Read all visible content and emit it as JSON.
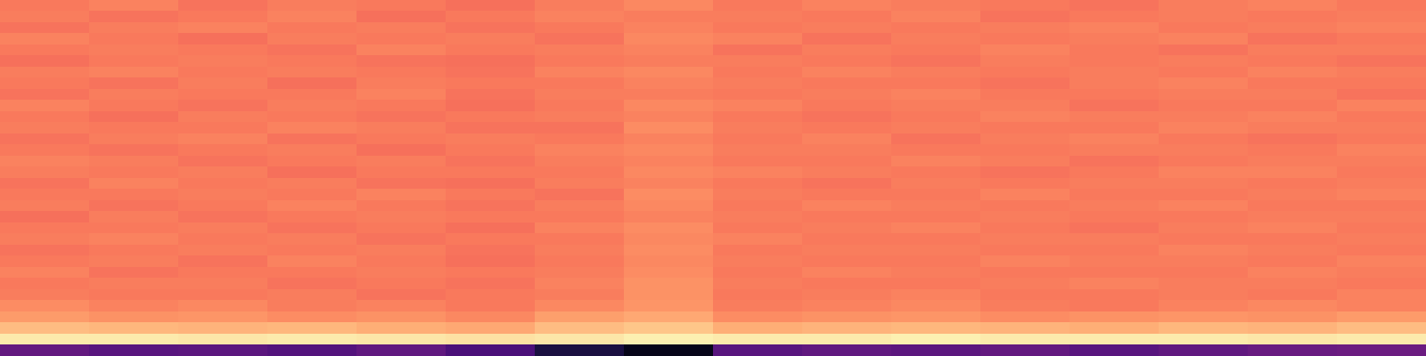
{
  "chart_data": {
    "type": "heatmap",
    "color": "magma",
    "tick_labels": false,
    "color_range": [
      0,
      1
    ],
    "cells": [
      [
        0.72,
        0.74,
        0.71,
        0.73,
        0.72,
        0.7,
        0.73,
        0.75,
        0.72,
        0.74,
        0.73,
        0.72,
        0.71,
        0.73,
        0.74,
        0.72
      ],
      [
        0.73,
        0.71,
        0.72,
        0.74,
        0.7,
        0.72,
        0.74,
        0.73,
        0.73,
        0.72,
        0.74,
        0.71,
        0.72,
        0.73,
        0.72,
        0.73
      ],
      [
        0.71,
        0.73,
        0.74,
        0.72,
        0.73,
        0.71,
        0.72,
        0.74,
        0.72,
        0.73,
        0.72,
        0.73,
        0.74,
        0.72,
        0.73,
        0.74
      ],
      [
        0.74,
        0.72,
        0.7,
        0.73,
        0.72,
        0.73,
        0.71,
        0.75,
        0.74,
        0.71,
        0.73,
        0.72,
        0.73,
        0.74,
        0.71,
        0.72
      ],
      [
        0.72,
        0.73,
        0.72,
        0.71,
        0.74,
        0.72,
        0.73,
        0.74,
        0.71,
        0.73,
        0.72,
        0.74,
        0.72,
        0.71,
        0.73,
        0.73
      ],
      [
        0.7,
        0.72,
        0.73,
        0.72,
        0.71,
        0.7,
        0.72,
        0.73,
        0.73,
        0.72,
        0.71,
        0.73,
        0.72,
        0.73,
        0.72,
        0.71
      ],
      [
        0.73,
        0.74,
        0.72,
        0.73,
        0.72,
        0.71,
        0.74,
        0.75,
        0.72,
        0.74,
        0.73,
        0.72,
        0.73,
        0.72,
        0.74,
        0.73
      ],
      [
        0.72,
        0.71,
        0.73,
        0.7,
        0.73,
        0.72,
        0.72,
        0.74,
        0.73,
        0.72,
        0.72,
        0.71,
        0.73,
        0.74,
        0.72,
        0.72
      ],
      [
        0.71,
        0.73,
        0.72,
        0.72,
        0.74,
        0.71,
        0.73,
        0.73,
        0.72,
        0.73,
        0.74,
        0.72,
        0.72,
        0.73,
        0.73,
        0.71
      ],
      [
        0.74,
        0.72,
        0.71,
        0.73,
        0.72,
        0.7,
        0.72,
        0.75,
        0.74,
        0.72,
        0.73,
        0.73,
        0.71,
        0.72,
        0.72,
        0.74
      ],
      [
        0.72,
        0.7,
        0.73,
        0.72,
        0.71,
        0.72,
        0.73,
        0.74,
        0.72,
        0.71,
        0.72,
        0.74,
        0.73,
        0.73,
        0.74,
        0.72
      ],
      [
        0.73,
        0.72,
        0.72,
        0.74,
        0.73,
        0.71,
        0.71,
        0.76,
        0.73,
        0.72,
        0.73,
        0.72,
        0.72,
        0.74,
        0.73,
        0.73
      ],
      [
        0.71,
        0.73,
        0.74,
        0.71,
        0.72,
        0.73,
        0.72,
        0.74,
        0.72,
        0.74,
        0.71,
        0.73,
        0.74,
        0.72,
        0.71,
        0.72
      ],
      [
        0.72,
        0.71,
        0.72,
        0.73,
        0.7,
        0.72,
        0.74,
        0.75,
        0.73,
        0.73,
        0.72,
        0.72,
        0.73,
        0.73,
        0.72,
        0.74
      ],
      [
        0.74,
        0.73,
        0.71,
        0.72,
        0.73,
        0.71,
        0.73,
        0.74,
        0.72,
        0.72,
        0.74,
        0.73,
        0.71,
        0.72,
        0.73,
        0.73
      ],
      [
        0.73,
        0.72,
        0.73,
        0.7,
        0.72,
        0.72,
        0.72,
        0.75,
        0.74,
        0.73,
        0.72,
        0.71,
        0.72,
        0.74,
        0.74,
        0.72
      ],
      [
        0.71,
        0.74,
        0.72,
        0.73,
        0.71,
        0.7,
        0.73,
        0.74,
        0.72,
        0.71,
        0.73,
        0.72,
        0.73,
        0.73,
        0.72,
        0.73
      ],
      [
        0.72,
        0.72,
        0.73,
        0.72,
        0.74,
        0.72,
        0.71,
        0.76,
        0.73,
        0.72,
        0.72,
        0.74,
        0.72,
        0.72,
        0.73,
        0.74
      ],
      [
        0.73,
        0.71,
        0.72,
        0.74,
        0.72,
        0.71,
        0.73,
        0.75,
        0.72,
        0.74,
        0.73,
        0.72,
        0.73,
        0.74,
        0.72,
        0.72
      ],
      [
        0.7,
        0.73,
        0.71,
        0.72,
        0.73,
        0.72,
        0.72,
        0.74,
        0.73,
        0.72,
        0.72,
        0.73,
        0.72,
        0.72,
        0.73,
        0.73
      ],
      [
        0.72,
        0.72,
        0.73,
        0.71,
        0.72,
        0.7,
        0.74,
        0.76,
        0.72,
        0.73,
        0.74,
        0.72,
        0.71,
        0.73,
        0.74,
        0.72
      ],
      [
        0.73,
        0.74,
        0.72,
        0.73,
        0.71,
        0.72,
        0.72,
        0.75,
        0.74,
        0.72,
        0.72,
        0.73,
        0.73,
        0.72,
        0.72,
        0.73
      ],
      [
        0.71,
        0.72,
        0.73,
        0.72,
        0.73,
        0.71,
        0.73,
        0.76,
        0.72,
        0.73,
        0.73,
        0.72,
        0.72,
        0.74,
        0.73,
        0.72
      ],
      [
        0.72,
        0.73,
        0.71,
        0.74,
        0.72,
        0.7,
        0.72,
        0.75,
        0.73,
        0.72,
        0.72,
        0.74,
        0.73,
        0.73,
        0.72,
        0.74
      ],
      [
        0.74,
        0.71,
        0.72,
        0.72,
        0.73,
        0.72,
        0.73,
        0.76,
        0.72,
        0.74,
        0.73,
        0.72,
        0.72,
        0.72,
        0.74,
        0.73
      ],
      [
        0.72,
        0.73,
        0.73,
        0.71,
        0.72,
        0.71,
        0.74,
        0.77,
        0.73,
        0.72,
        0.72,
        0.73,
        0.74,
        0.73,
        0.73,
        0.72
      ],
      [
        0.73,
        0.72,
        0.72,
        0.73,
        0.71,
        0.72,
        0.73,
        0.77,
        0.72,
        0.73,
        0.74,
        0.72,
        0.72,
        0.73,
        0.72,
        0.74
      ],
      [
        0.76,
        0.74,
        0.75,
        0.73,
        0.74,
        0.72,
        0.75,
        0.78,
        0.73,
        0.74,
        0.75,
        0.73,
        0.72,
        0.74,
        0.75,
        0.74
      ],
      [
        0.79,
        0.77,
        0.78,
        0.76,
        0.77,
        0.75,
        0.8,
        0.82,
        0.76,
        0.77,
        0.78,
        0.76,
        0.77,
        0.78,
        0.77,
        0.79
      ],
      [
        0.86,
        0.85,
        0.84,
        0.85,
        0.83,
        0.82,
        0.86,
        0.88,
        0.83,
        0.84,
        0.85,
        0.84,
        0.83,
        0.85,
        0.84,
        0.86
      ],
      [
        0.96,
        0.96,
        0.95,
        0.96,
        0.95,
        0.94,
        0.95,
        0.97,
        0.96,
        0.96,
        0.97,
        0.96,
        0.96,
        0.96,
        0.95,
        0.96
      ],
      [
        0.3,
        0.27,
        0.28,
        0.26,
        0.29,
        0.24,
        0.12,
        0.05,
        0.27,
        0.29,
        0.28,
        0.3,
        0.27,
        0.29,
        0.31,
        0.32
      ]
    ]
  }
}
